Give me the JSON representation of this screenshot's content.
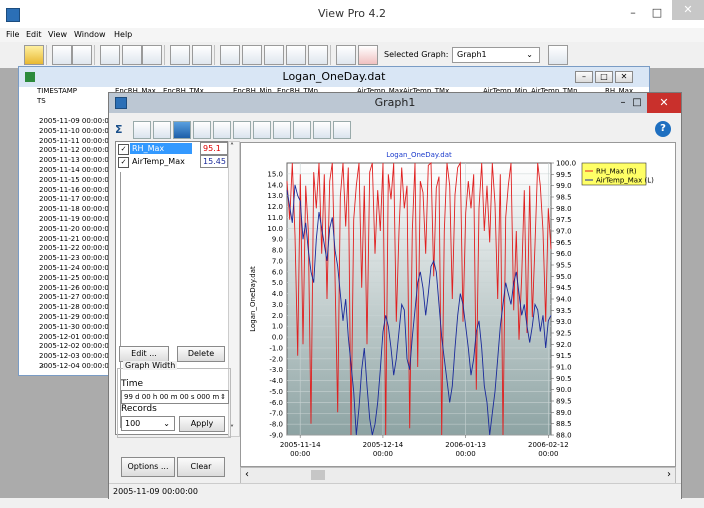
{
  "app": {
    "title": "View Pro 4.2"
  },
  "menu": [
    "File",
    "Edit",
    "View",
    "Window",
    "Help"
  ],
  "toolbar": {
    "selected_graph_label": "Selected Graph:",
    "selected_graph_value": "Graph1"
  },
  "logan": {
    "title": "Logan_OneDay.dat",
    "headers": [
      "TIMESTAMP",
      "EncRH_Max",
      "EncRH_TMx",
      "EncRH_Min",
      "EncRH_TMn",
      "AirTemp_Max",
      "AirTemp_TMx",
      "AirTemp_Min",
      "AirTemp_TMn",
      "RH_Max"
    ],
    "subheader": "TS",
    "rows": [
      "2005-11-09 00:00:0",
      "2005-11-10 00:00:0",
      "2005-11-11 00:00:0",
      "2005-11-12 00:00:0",
      "2005-11-13 00:00:0",
      "2005-11-14 00:00:0",
      "2005-11-15 00:00:0",
      "2005-11-16 00:00:0",
      "2005-11-17 00:00:0",
      "2005-11-18 00:00:0",
      "2005-11-19 00:00:0",
      "2005-11-20 00:00:0",
      "2005-11-21 00:00:0",
      "2005-11-22 00:00:0",
      "2005-11-23 00:00:0",
      "2005-11-24 00:00:0",
      "2005-11-25 00:00:0",
      "2005-11-26 00:00:0",
      "2005-11-27 00:00:0",
      "2005-11-28 00:00:0",
      "2005-11-29 00:00:0",
      "2005-11-30 00:00:0",
      "2005-12-01 00:00:0",
      "2005-12-02 00:00:0",
      "2005-12-03 00:00:0",
      "2005-12-04 00:00:0"
    ]
  },
  "graph": {
    "title": "Graph1",
    "traces": [
      {
        "name": "RH_Max",
        "value": "95.1",
        "selected": true
      },
      {
        "name": "AirTemp_Max",
        "value": "15.45",
        "selected": false
      }
    ],
    "edit_label": "Edit ...",
    "delete_label": "Delete",
    "graph_width_label": "Graph Width",
    "time_label": "Time",
    "time_value": "99 d 00 h 00 m 00 s 000 m",
    "records_label": "Records",
    "records_value": "100",
    "apply_label": "Apply",
    "options_label": "Options ...",
    "clear_label": "Clear",
    "status": "2005-11-09 00:00:00"
  },
  "colors": {
    "rh": "#e02020",
    "airtemp": "#1a2a9a",
    "legend_bg": "#ffff66",
    "plot_top": "#ffffff",
    "plot_bottom": "#8da3a3"
  },
  "chart_data": {
    "type": "line",
    "title": "Logan_OneDay.dat",
    "ylabel": "Logan_OneDay.dat",
    "xlabel": "",
    "x_ticks": [
      "2005-11-14 00:00",
      "2005-12-14 00:00",
      "2006-01-13 00:00",
      "2006-02-12 00:00"
    ],
    "ylim_left": [
      -9.0,
      16.0
    ],
    "ylim_right": [
      88.0,
      100.0
    ],
    "y_left_ticks": [
      "15.0",
      "14.0",
      "13.0",
      "12.0",
      "11.0",
      "10.0",
      "9.0",
      "8.0",
      "7.0",
      "6.0",
      "5.0",
      "4.0",
      "3.0",
      "2.0",
      "1.0",
      "0.0",
      "-1.0",
      "-2.0",
      "-3.0",
      "-4.0",
      "-5.0",
      "-6.0",
      "-7.0",
      "-8.0",
      "-9.0"
    ],
    "y_right_ticks": [
      "100.0",
      "99.5",
      "99.0",
      "98.5",
      "98.0",
      "97.5",
      "97.0",
      "96.5",
      "96.0",
      "95.5",
      "95.0",
      "94.5",
      "94.0",
      "93.5",
      "93.0",
      "92.5",
      "92.0",
      "91.5",
      "91.0",
      "90.5",
      "90.0",
      "89.5",
      "89.0",
      "88.5",
      "88.0"
    ],
    "legend": [
      "RH_Max (R)",
      "AirTemp_Max (L)"
    ],
    "grid": true,
    "series": [
      {
        "name": "RH_Max (R)",
        "axis": "right",
        "values": [
          99.2,
          97.5,
          100,
          96.8,
          91.5,
          99.5,
          92,
          99,
          97,
          88.5,
          99.6,
          98,
          100,
          96,
          99.5,
          94,
          99.2,
          100,
          95,
          89,
          98.5,
          100,
          97.2,
          99.8,
          88,
          97.5,
          99,
          100,
          94.5,
          99,
          92,
          99.6,
          100,
          96,
          98.8,
          97,
          100,
          88,
          99.5,
          98.4,
          100,
          93,
          97,
          99.8,
          98,
          99,
          88.3,
          97,
          100,
          91,
          99.2,
          98.7,
          96,
          99.9,
          100,
          95,
          98.9,
          99.4,
          88,
          97,
          100,
          99,
          94,
          98.6,
          99.8,
          100,
          93,
          97.8,
          99.2,
          98,
          99.5,
          90,
          98,
          100,
          97,
          99,
          96.5,
          100,
          98.2,
          94,
          99.5,
          88,
          97.6,
          99,
          100,
          93.5,
          97,
          92.2,
          95,
          98.8,
          92.5,
          99,
          93.2,
          96.4,
          100,
          99,
          97,
          93,
          98,
          96.2
        ]
      },
      {
        "name": "AirTemp_Max (L)",
        "axis": "left",
        "values": [
          13.5,
          12.0,
          10.5,
          14.0,
          13.0,
          12.5,
          9.0,
          10.5,
          8.0,
          6.0,
          5.0,
          9.0,
          11.5,
          10.0,
          8.5,
          7.0,
          10.0,
          11.0,
          8.0,
          6.5,
          4.0,
          1.5,
          3.5,
          0.0,
          -2.5,
          -5.0,
          -9.0,
          -6.5,
          -3.0,
          -1.0,
          -4.5,
          -7.5,
          -9.0,
          -8.0,
          -6.0,
          -3.0,
          0.5,
          2.0,
          1.0,
          -1.0,
          -3.5,
          -2.0,
          0.5,
          3.0,
          2.5,
          -2.0,
          -3.0,
          0.0,
          2.5,
          5.0,
          6.0,
          4.5,
          2.0,
          4.0,
          6.5,
          7.0,
          6.0,
          3.0,
          0.0,
          -2.0,
          -4.0,
          -6.0,
          -4.5,
          -1.0,
          2.0,
          4.0,
          3.0,
          1.0,
          -1.0,
          -3.5,
          -2.0,
          0.5,
          1.5,
          -1.0,
          -4.5,
          -6.0,
          -9.0,
          -7.0,
          -5.0,
          -2.0,
          1.0,
          3.0,
          5.0,
          4.0,
          3.0,
          5.0,
          6.0,
          4.0,
          2.0,
          3.0,
          1.0,
          -0.5,
          1.0,
          3.0,
          2.5,
          0.5,
          2.0,
          -1.0,
          1.5,
          2.0
        ]
      }
    ]
  }
}
